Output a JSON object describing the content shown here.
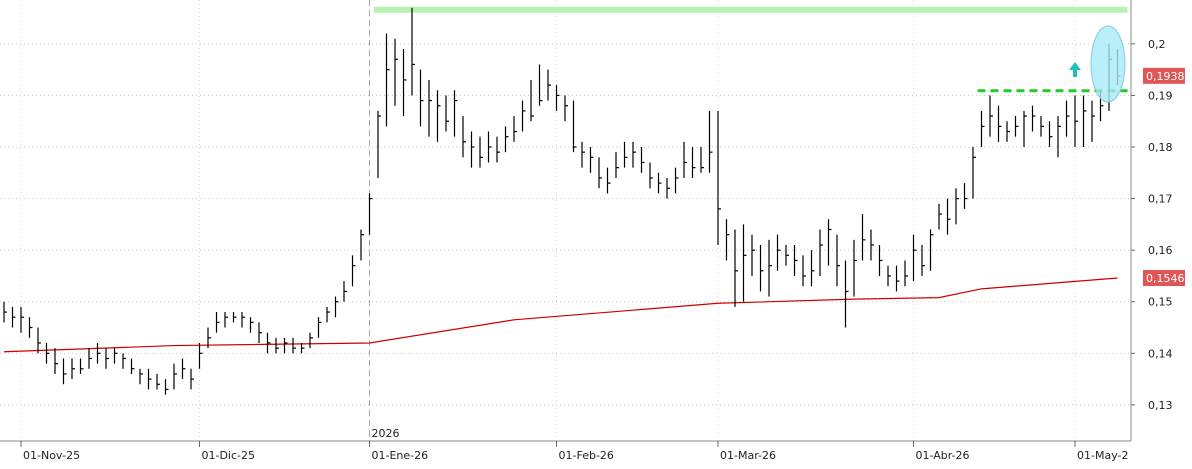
{
  "chart_data": {
    "type": "hlc",
    "categories": [
      null,
      null,
      "01-Nov-25",
      null,
      null,
      null,
      null,
      null,
      null,
      null,
      null,
      null,
      null,
      null,
      null,
      null,
      null,
      null,
      null,
      null,
      null,
      null,
      null,
      "01-Dic-25",
      null,
      null,
      null,
      null,
      null,
      null,
      null,
      null,
      null,
      null,
      null,
      null,
      null,
      null,
      null,
      null,
      null,
      null,
      null,
      "01-Ene-26",
      null,
      null,
      null,
      null,
      null,
      null,
      null,
      null,
      null,
      null,
      null,
      null,
      null,
      null,
      null,
      null,
      null,
      null,
      null,
      null,
      null,
      "01-Feb-26",
      null,
      null,
      null,
      null,
      null,
      null,
      null,
      null,
      null,
      null,
      null,
      null,
      null,
      null,
      null,
      null,
      null,
      null,
      "01-Mar-26",
      null,
      null,
      null,
      null,
      null,
      null,
      null,
      null,
      null,
      null,
      null,
      null,
      null,
      null,
      null,
      null,
      null,
      null,
      null,
      null,
      null,
      null,
      "01-Abr-26",
      null,
      null,
      null,
      null,
      null,
      null,
      null,
      null,
      null,
      null,
      null,
      null,
      null,
      null,
      null,
      null,
      null,
      null,
      "01-May-2",
      null,
      null,
      null,
      null,
      null
    ],
    "series": [
      {
        "color": "#000000",
        "high": [
          0.15,
          0.149,
          0.149,
          0.147,
          0.145,
          0.142,
          0.141,
          0.139,
          0.139,
          0.139,
          0.141,
          0.142,
          0.141,
          0.141,
          0.14,
          0.139,
          0.137,
          0.137,
          0.136,
          0.135,
          0.138,
          0.139,
          0.137,
          0.142,
          0.145,
          0.148,
          0.148,
          0.148,
          0.148,
          0.147,
          0.146,
          0.144,
          0.143,
          0.143,
          0.143,
          0.142,
          0.144,
          0.147,
          0.149,
          0.151,
          0.154,
          0.159,
          0.164,
          0.171,
          0.187,
          0.202,
          0.201,
          0.199,
          0.207,
          0.195,
          0.193,
          0.191,
          0.19,
          0.191,
          0.186,
          0.183,
          0.182,
          0.183,
          0.182,
          0.184,
          0.186,
          0.189,
          0.193,
          0.196,
          0.195,
          0.192,
          0.19,
          0.189,
          0.181,
          0.18,
          0.178,
          0.176,
          0.179,
          0.181,
          0.181,
          0.18,
          0.177,
          0.175,
          0.174,
          0.176,
          0.181,
          0.18,
          0.18,
          0.187,
          0.187,
          0.166,
          0.164,
          0.165,
          0.163,
          0.161,
          0.162,
          0.163,
          0.161,
          0.161,
          0.159,
          0.16,
          0.164,
          0.166,
          0.163,
          0.158,
          0.162,
          0.167,
          0.164,
          0.161,
          0.157,
          0.157,
          0.158,
          0.163,
          0.161,
          0.164,
          0.169,
          0.17,
          0.172,
          0.173,
          0.18,
          0.187,
          0.19,
          0.188,
          0.185,
          0.186,
          0.187,
          0.188,
          0.186,
          0.185,
          0.186,
          0.189,
          0.19,
          0.19,
          0.189,
          0.191,
          0.2,
          0.199
        ],
        "low": [
          0.146,
          0.145,
          0.144,
          0.143,
          0.14,
          0.138,
          0.136,
          0.134,
          0.135,
          0.136,
          0.137,
          0.138,
          0.137,
          0.138,
          0.137,
          0.136,
          0.134,
          0.133,
          0.133,
          0.132,
          0.133,
          0.135,
          0.133,
          0.137,
          0.141,
          0.144,
          0.145,
          0.146,
          0.145,
          0.144,
          0.142,
          0.14,
          0.14,
          0.14,
          0.14,
          0.14,
          0.141,
          0.143,
          0.146,
          0.147,
          0.15,
          0.153,
          0.158,
          0.163,
          0.174,
          0.184,
          0.188,
          0.186,
          0.19,
          0.184,
          0.182,
          0.181,
          0.183,
          0.182,
          0.178,
          0.176,
          0.176,
          0.177,
          0.177,
          0.179,
          0.181,
          0.183,
          0.185,
          0.188,
          0.189,
          0.187,
          0.185,
          0.179,
          0.176,
          0.175,
          0.172,
          0.171,
          0.174,
          0.176,
          0.176,
          0.175,
          0.172,
          0.171,
          0.17,
          0.171,
          0.174,
          0.174,
          0.175,
          0.175,
          0.161,
          0.158,
          0.149,
          0.15,
          0.155,
          0.152,
          0.151,
          0.156,
          0.157,
          0.155,
          0.153,
          0.153,
          0.155,
          0.157,
          0.153,
          0.145,
          0.151,
          0.158,
          0.158,
          0.155,
          0.153,
          0.152,
          0.153,
          0.154,
          0.155,
          0.156,
          0.164,
          0.163,
          0.165,
          0.168,
          0.17,
          0.18,
          0.182,
          0.181,
          0.181,
          0.182,
          0.18,
          0.183,
          0.182,
          0.18,
          0.178,
          0.182,
          0.18,
          0.18,
          0.181,
          0.185,
          0.187,
          0.192
        ],
        "close": [
          0.148,
          0.147,
          0.147,
          0.145,
          0.142,
          0.14,
          0.138,
          0.136,
          0.137,
          0.137,
          0.139,
          0.14,
          0.139,
          0.14,
          0.139,
          0.137,
          0.136,
          0.135,
          0.134,
          0.133,
          0.136,
          0.137,
          0.135,
          0.14,
          0.143,
          0.146,
          0.147,
          0.147,
          0.147,
          0.146,
          0.144,
          0.142,
          0.141,
          0.142,
          0.141,
          0.141,
          0.143,
          0.146,
          0.148,
          0.15,
          0.152,
          0.157,
          0.163,
          0.17,
          0.186,
          0.195,
          0.197,
          0.193,
          0.196,
          0.189,
          0.189,
          0.188,
          0.185,
          0.189,
          0.181,
          0.18,
          0.178,
          0.18,
          0.179,
          0.182,
          0.183,
          0.187,
          0.186,
          0.189,
          0.192,
          0.19,
          0.188,
          0.18,
          0.179,
          0.178,
          0.174,
          0.173,
          0.176,
          0.178,
          0.179,
          0.177,
          0.174,
          0.173,
          0.172,
          0.174,
          0.177,
          0.176,
          0.176,
          0.179,
          0.168,
          0.163,
          0.156,
          0.159,
          0.16,
          0.156,
          0.157,
          0.16,
          0.159,
          0.158,
          0.155,
          0.156,
          0.161,
          0.164,
          0.157,
          0.152,
          0.158,
          0.162,
          0.161,
          0.158,
          0.155,
          0.154,
          0.155,
          0.16,
          0.157,
          0.163,
          0.167,
          0.166,
          0.17,
          0.17,
          0.178,
          0.184,
          0.186,
          0.184,
          0.183,
          0.184,
          0.186,
          0.186,
          0.184,
          0.182,
          0.184,
          0.186,
          0.185,
          0.187,
          0.186,
          0.188,
          0.197,
          0.1938
        ]
      }
    ],
    "moving_average": {
      "color": "#cc0000",
      "x": [
        0,
        20,
        43,
        60,
        84,
        100,
        110,
        115,
        131
      ],
      "values": [
        0.1403,
        0.1415,
        0.142,
        0.1465,
        0.1497,
        0.1505,
        0.1508,
        0.1525,
        0.1546
      ]
    },
    "levels": [
      {
        "value": 0.2066,
        "x": [
          44,
          131
        ],
        "color": "#b8f2b0",
        "dashed": false
      },
      {
        "value": 0.1909,
        "x": [
          115,
          131
        ],
        "color": "#22cc22",
        "dashed": true
      }
    ],
    "price_tags": [
      {
        "value": 0.1938,
        "label": "0,1938",
        "color": "#e05555"
      },
      {
        "value": 0.1546,
        "label": "0,1546",
        "color": "#e05555"
      }
    ],
    "year_separator": {
      "label": "2026",
      "category": "01-Ene-26"
    },
    "ylim": [
      0.123,
      0.2085
    ],
    "yticks": [
      {
        "value": 0.13,
        "label": "0,13"
      },
      {
        "value": 0.14,
        "label": "0,14"
      },
      {
        "value": 0.15,
        "label": "0,15"
      },
      {
        "value": 0.16,
        "label": "0,16"
      },
      {
        "value": 0.17,
        "label": "0,17"
      },
      {
        "value": 0.18,
        "label": "0,18"
      },
      {
        "value": 0.19,
        "label": "0,19"
      },
      {
        "value": 0.2,
        "label": "0,2"
      }
    ],
    "grid": true
  }
}
